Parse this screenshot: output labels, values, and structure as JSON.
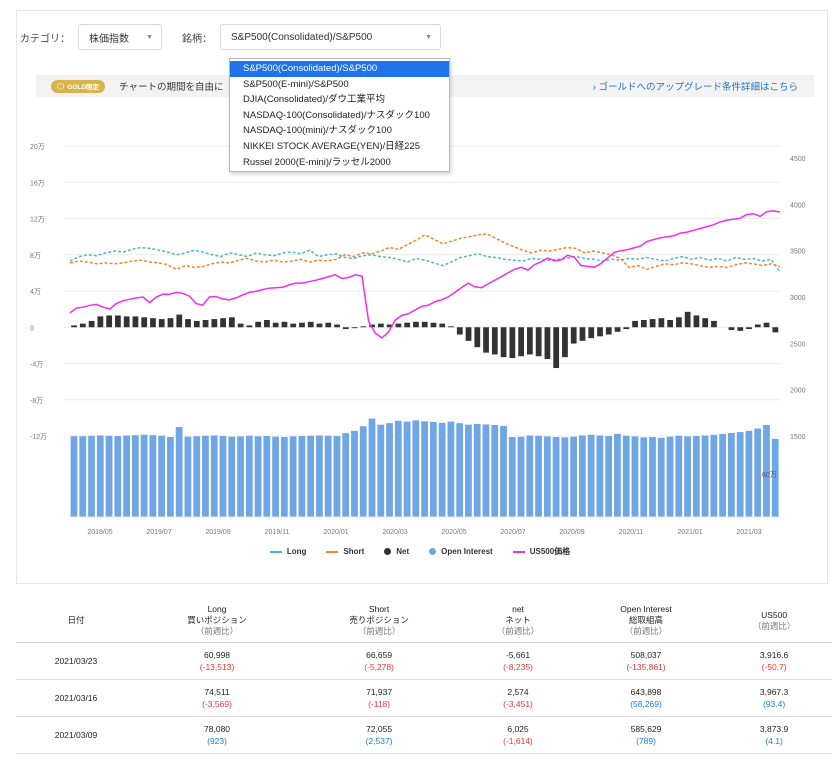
{
  "filters": {
    "category_label": "カテゴリ：",
    "category_value": "株価指数",
    "symbol_label": "銘柄：",
    "symbol_value": "S&P500(Consolidated)/S&P500"
  },
  "dropdown": {
    "options": [
      "S&P500(Consolidated)/S&P500",
      "S&P500(E-mini)/S&P500",
      "DJIA(Consolidated)/ダウ工業平均",
      "NASDAQ-100(Consolidated)/ナスダック100",
      "NASDAQ-100(mini)/ナスダック100",
      "NIKKEI STOCK AVERAGE(YEN)/日経225",
      "Russel 2000(E-mini)/ラッセル2000"
    ],
    "selected_index": 0
  },
  "gold": {
    "badge": "GOLD限定",
    "text": "チャートの期間を自由に",
    "link": "› ゴールドへのアップグレード条件詳細はこちら"
  },
  "chart_data": {
    "type": "line",
    "title": "",
    "x_ticks": [
      "2019/05",
      "2019/07",
      "2019/09",
      "2019/11",
      "2020/01",
      "2020/03",
      "2020/05",
      "2020/07",
      "2020/09",
      "2020/11",
      "2021/01",
      "2021/03"
    ],
    "y_left_ticks": [
      "20万",
      "16万",
      "12万",
      "8万",
      "4万",
      "0",
      "-4万",
      "-8万",
      "-12万"
    ],
    "y_left_range": [
      -120000,
      200000
    ],
    "y_right_ticks": [
      "4500",
      "4000",
      "3500",
      "3000",
      "2500",
      "2000",
      "1500"
    ],
    "y_right_range": [
      1500,
      4500
    ],
    "oi_label": "60万",
    "grid": true,
    "legend_position": "bottom",
    "colors": {
      "long": "#4fb8c9",
      "short": "#f0862e",
      "net": "#333333",
      "oi": "#6fa6e6",
      "us500": "#f22cf0"
    },
    "series": [
      {
        "name": "Long",
        "values": [
          73000,
          78000,
          80000,
          79000,
          82000,
          84000,
          83000,
          86000,
          88000,
          87000,
          85000,
          83000,
          80000,
          82000,
          85000,
          83000,
          80000,
          78000,
          82000,
          80000,
          78000,
          82000,
          80000,
          79000,
          82000,
          83000,
          81000,
          85000,
          78000,
          80000,
          81000,
          77000,
          76000,
          79000,
          80000,
          78000,
          77000,
          75000,
          72000,
          76000,
          74000,
          71000,
          68000,
          72000,
          77000,
          79000,
          81000,
          78000,
          77000,
          75000,
          74000,
          73000,
          76000,
          75000,
          74000,
          75000,
          76000,
          78000,
          76000,
          75000,
          73000,
          75000,
          74000,
          76000,
          75000,
          77000,
          75000,
          73000,
          76000,
          78000,
          75000,
          77000,
          74000,
          76000,
          73000,
          77000,
          75000,
          76000,
          73000,
          75000,
          61000
        ]
      },
      {
        "name": "Short",
        "values": [
          71000,
          73000,
          72000,
          70000,
          71000,
          70000,
          71000,
          73000,
          74000,
          72000,
          71000,
          69000,
          64000,
          68000,
          66000,
          67000,
          70000,
          72000,
          71000,
          74000,
          76000,
          73000,
          72000,
          74000,
          72000,
          73000,
          75000,
          72000,
          74000,
          73000,
          75000,
          80000,
          78000,
          82000,
          81000,
          84000,
          88000,
          86000,
          91000,
          96000,
          102000,
          97000,
          92000,
          95000,
          98000,
          100000,
          102000,
          103000,
          98000,
          93000,
          89000,
          85000,
          82000,
          85000,
          84000,
          86000,
          88000,
          87000,
          82000,
          84000,
          82000,
          80000,
          76000,
          66000,
          68000,
          64000,
          67000,
          70000,
          69000,
          71000,
          70000,
          68000,
          66000,
          67000,
          66000,
          69000,
          71000,
          70000,
          68000,
          70000,
          66659
        ]
      },
      {
        "name": "Net",
        "values": [
          2000,
          4000,
          7000,
          12000,
          13000,
          13000,
          12000,
          12000,
          11000,
          10000,
          9000,
          10000,
          14000,
          9000,
          7000,
          8000,
          9000,
          10000,
          11000,
          4000,
          2000,
          6000,
          8000,
          5000,
          6000,
          4000,
          5000,
          6000,
          4000,
          5000,
          3000,
          -2000,
          -1000,
          1000,
          3000,
          4000,
          3000,
          4000,
          5000,
          6000,
          6000,
          5000,
          4000,
          1000,
          -8000,
          -15000,
          -22000,
          -28000,
          -30000,
          -33000,
          -34000,
          -32000,
          -30000,
          -32000,
          -35000,
          -45000,
          -33000,
          -18000,
          -15000,
          -12000,
          -10000,
          -8000,
          -5000,
          -2000,
          7000,
          8000,
          9000,
          10000,
          8000,
          11000,
          17000,
          13000,
          10000,
          7000,
          0,
          -3000,
          -4000,
          -2000,
          3000,
          5000,
          -5661
        ]
      },
      {
        "name": "Open Interest",
        "values": [
          525000,
          525000,
          528000,
          530000,
          528000,
          526000,
          530000,
          532000,
          535000,
          532000,
          528000,
          520000,
          585000,
          522000,
          525000,
          528000,
          530000,
          526000,
          522000,
          524000,
          528000,
          524000,
          526000,
          522000,
          520000,
          524000,
          526000,
          528000,
          530000,
          528000,
          526000,
          545000,
          560000,
          590000,
          640000,
          600000,
          610000,
          625000,
          620000,
          628000,
          622000,
          618000,
          612000,
          620000,
          610000,
          600000,
          605000,
          602000,
          598000,
          592000,
          520000,
          522000,
          530000,
          528000,
          524000,
          520000,
          518000,
          522000,
          530000,
          534000,
          530000,
          526000,
          540000,
          528000,
          524000,
          518000,
          520000,
          515000,
          522000,
          528000,
          524000,
          526000,
          530000,
          534000,
          540000,
          546000,
          552000,
          560000,
          575000,
          598000,
          508037
        ]
      },
      {
        "name": "US500価格",
        "values": [
          2830,
          2880,
          2890,
          2910,
          2920,
          2890,
          2870,
          2930,
          2960,
          2975,
          2990,
          3000,
          2940,
          3000,
          3030,
          3030,
          3050,
          3040,
          3010,
          2930,
          2910,
          3000,
          3005,
          2980,
          2970,
          2990,
          3020,
          3050,
          3060,
          3080,
          3095,
          3100,
          3105,
          3130,
          3150,
          3150,
          3165,
          3180,
          3200,
          3220,
          3240,
          3200,
          3210,
          3240,
          3225,
          2740,
          2610,
          2560,
          2620,
          2750,
          2800,
          2820,
          2860,
          2900,
          2910,
          2950,
          2970,
          3000,
          3050,
          3100,
          3150,
          3110,
          3100,
          3140,
          3180,
          3220,
          3260,
          3300,
          3320,
          3290,
          3350,
          3380,
          3420,
          3390,
          3400,
          3450,
          3430,
          3340,
          3330,
          3320,
          3360,
          3420,
          3480,
          3500,
          3510,
          3530,
          3550,
          3600,
          3620,
          3640,
          3650,
          3660,
          3690,
          3700,
          3720,
          3740,
          3760,
          3780,
          3810,
          3830,
          3840,
          3850,
          3890,
          3900,
          3870,
          3920,
          3930,
          3916.6
        ]
      }
    ]
  },
  "legend": {
    "long": "Long",
    "short": "Short",
    "net": "Net",
    "oi": "Open Interest",
    "us500": "US500価格"
  },
  "table": {
    "headers": [
      {
        "l1": "日付",
        "l2": "",
        "l3": ""
      },
      {
        "l1": "Long",
        "l2": "買いポジション",
        "l3": "（前週比）"
      },
      {
        "l1": "Short",
        "l2": "売りポジション",
        "l3": "（前週比）"
      },
      {
        "l1": "net",
        "l2": "ネット",
        "l3": "（前週比）"
      },
      {
        "l1": "Open Interest",
        "l2": "総取組高",
        "l3": "（前週比）"
      },
      {
        "l1": "US500",
        "l2": "（前週比）",
        "l3": ""
      }
    ],
    "rows": [
      {
        "date": "2021/03/23",
        "long": "60,998",
        "long_chg": "(-13,513)",
        "short": "66,659",
        "short_chg": "(-5,278)",
        "net": "-5,661",
        "net_chg": "(-8,235)",
        "oi": "508,037",
        "oi_chg": "(-135,861)",
        "us500": "3,916.6",
        "us500_chg": "(-50.7)"
      },
      {
        "date": "2021/03/16",
        "long": "74,511",
        "long_chg": "(-3,569)",
        "short": "71,937",
        "short_chg": "(-118)",
        "net": "2,574",
        "net_chg": "(-3,451)",
        "oi": "643,898",
        "oi_chg": "(58,269)",
        "us500": "3,967.3",
        "us500_chg": "(93.4)"
      },
      {
        "date": "2021/03/09",
        "long": "78,080",
        "long_chg": "(923)",
        "short": "72,055",
        "short_chg": "(2,537)",
        "net": "6,025",
        "net_chg": "(-1,614)",
        "oi": "585,629",
        "oi_chg": "(789)",
        "us500": "3,873.9",
        "us500_chg": "(4.1)"
      }
    ]
  }
}
